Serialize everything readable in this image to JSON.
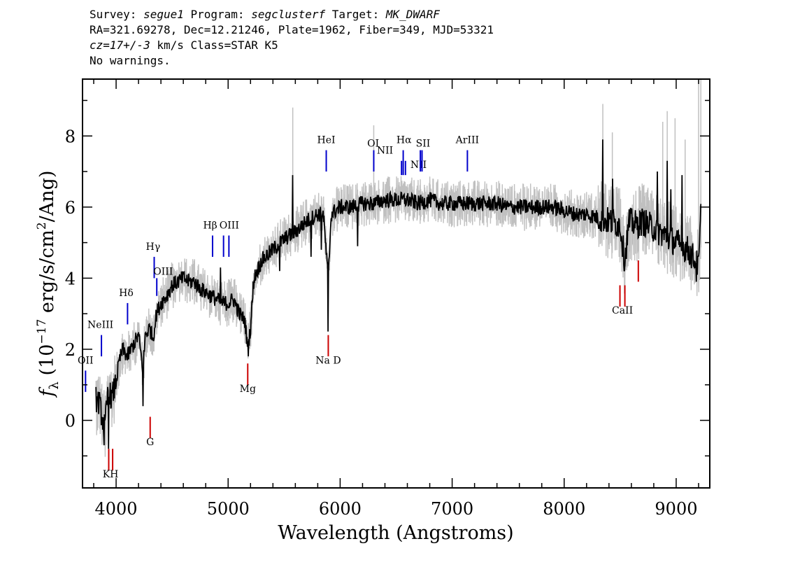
{
  "header": {
    "survey_label": "Survey: ",
    "survey": "segue1",
    "program_label": " Program: ",
    "program": "segclusterf",
    "target_label": " Target: ",
    "target": "MK_DWARF",
    "line2": "RA=321.69278, Dec=12.21246, Plate=1962, Fiber=349, MJD=53321",
    "cz": "cz=17+/-3",
    "line3_rest": " km/s Class=STAR K5",
    "line4": "No warnings."
  },
  "chart_data": {
    "type": "line",
    "xlabel": "Wavelength (Angstroms)",
    "ylabel": "f_λ (10^-17 erg/s/cm^2/Ang)",
    "ylabel_parts": {
      "f": "f",
      "sub": "λ",
      "pre": " (10",
      "exp": "−17",
      "mid": " erg/s/cm",
      "exp2": "2",
      "post": "/Ang)"
    },
    "xlim": [
      3700,
      9300
    ],
    "ylim": [
      -1.9,
      9.6
    ],
    "xticks": [
      4000,
      5000,
      6000,
      7000,
      8000,
      9000
    ],
    "xtick_labels": [
      "4000",
      "5000",
      "6000",
      "7000",
      "8000",
      "9000"
    ],
    "yticks": [
      0,
      2,
      4,
      6,
      8
    ],
    "ytick_labels": [
      "0",
      "2",
      "4",
      "6",
      "8"
    ],
    "colors": {
      "spectrum": "#000000",
      "error": "#c0c0c0",
      "emission": "#0000cc",
      "absorption": "#cc0000"
    },
    "spectrum_knots": [
      [
        3820,
        0.6
      ],
      [
        3850,
        0.5
      ],
      [
        3880,
        0.0
      ],
      [
        3900,
        -0.2
      ],
      [
        3930,
        0.9
      ],
      [
        3960,
        0.6
      ],
      [
        4000,
        1.1
      ],
      [
        4030,
        1.7
      ],
      [
        4060,
        2.0
      ],
      [
        4100,
        1.8
      ],
      [
        4150,
        2.1
      ],
      [
        4200,
        2.4
      ],
      [
        4240,
        1.4
      ],
      [
        4260,
        2.4
      ],
      [
        4300,
        2.6
      ],
      [
        4330,
        2.3
      ],
      [
        4360,
        3.0
      ],
      [
        4400,
        3.3
      ],
      [
        4450,
        3.5
      ],
      [
        4500,
        3.8
      ],
      [
        4550,
        3.9
      ],
      [
        4600,
        4.0
      ],
      [
        4650,
        3.9
      ],
      [
        4700,
        3.9
      ],
      [
        4750,
        3.7
      ],
      [
        4800,
        3.6
      ],
      [
        4850,
        3.5
      ],
      [
        4900,
        3.4
      ],
      [
        4950,
        3.3
      ],
      [
        5000,
        3.3
      ],
      [
        5050,
        3.4
      ],
      [
        5100,
        3.0
      ],
      [
        5150,
        2.8
      ],
      [
        5175,
        2.0
      ],
      [
        5200,
        2.6
      ],
      [
        5230,
        4.0
      ],
      [
        5300,
        4.5
      ],
      [
        5400,
        4.8
      ],
      [
        5500,
        5.1
      ],
      [
        5600,
        5.3
      ],
      [
        5700,
        5.6
      ],
      [
        5800,
        5.8
      ],
      [
        5850,
        5.8
      ],
      [
        5893,
        4.0
      ],
      [
        5920,
        5.8
      ],
      [
        6000,
        6.0
      ],
      [
        6100,
        6.0
      ],
      [
        6200,
        6.1
      ],
      [
        6300,
        6.1
      ],
      [
        6400,
        6.2
      ],
      [
        6500,
        6.2
      ],
      [
        6600,
        6.2
      ],
      [
        6700,
        6.1
      ],
      [
        6800,
        6.2
      ],
      [
        6900,
        6.1
      ],
      [
        7000,
        6.1
      ],
      [
        7100,
        6.1
      ],
      [
        7200,
        6.1
      ],
      [
        7300,
        6.1
      ],
      [
        7400,
        6.1
      ],
      [
        7500,
        6.0
      ],
      [
        7600,
        6.0
      ],
      [
        7700,
        6.0
      ],
      [
        7800,
        6.0
      ],
      [
        7900,
        6.0
      ],
      [
        8000,
        5.9
      ],
      [
        8100,
        5.8
      ],
      [
        8200,
        5.8
      ],
      [
        8300,
        5.7
      ],
      [
        8400,
        5.6
      ],
      [
        8500,
        5.5
      ],
      [
        8540,
        4.5
      ],
      [
        8580,
        5.6
      ],
      [
        8650,
        5.5
      ],
      [
        8700,
        5.6
      ],
      [
        8800,
        5.4
      ],
      [
        8900,
        5.2
      ],
      [
        9000,
        5.0
      ],
      [
        9100,
        4.8
      ],
      [
        9150,
        4.6
      ],
      [
        9200,
        4.3
      ],
      [
        9220,
        5.8
      ]
    ],
    "spectrum_spikes": [
      [
        5577,
        6.9
      ],
      [
        5893,
        2.5
      ],
      [
        5178,
        1.8
      ],
      [
        8345,
        7.9
      ],
      [
        8920,
        7.3
      ],
      [
        8830,
        7.0
      ],
      [
        6155,
        4.9
      ],
      [
        5740,
        4.6
      ],
      [
        4930,
        4.3
      ],
      [
        3890,
        -0.7
      ],
      [
        3930,
        -0.8
      ],
      [
        4240,
        0.4
      ],
      [
        9180,
        3.9
      ],
      [
        8430,
        6.8
      ],
      [
        9050,
        6.9
      ],
      [
        8950,
        6.5
      ],
      [
        5460,
        4.2
      ],
      [
        5830,
        4.8
      ]
    ],
    "noise_amplitude": 0.45,
    "error_amplitude": 0.6,
    "error_spikes": [
      [
        5577,
        8.8
      ],
      [
        6300,
        8.3
      ],
      [
        8345,
        8.9
      ],
      [
        8920,
        8.7
      ],
      [
        8990,
        8.5
      ],
      [
        8880,
        8.4
      ],
      [
        8430,
        8.1
      ],
      [
        9080,
        7.9
      ],
      [
        9200,
        9.6
      ],
      [
        9220,
        9.6
      ]
    ],
    "emission_lines": [
      {
        "label": "OII",
        "x": 3727,
        "y0": 0.8,
        "y1": 1.4,
        "lx": 3727,
        "ly": 1.6
      },
      {
        "label": "NeIII",
        "x": 3869,
        "y0": 1.8,
        "y1": 2.4,
        "lx": 3860,
        "ly": 2.6
      },
      {
        "label": "Hδ",
        "x": 4102,
        "y0": 2.7,
        "y1": 3.3,
        "lx": 4090,
        "ly": 3.5
      },
      {
        "label": "Hγ",
        "x": 4340,
        "y0": 4.0,
        "y1": 4.6,
        "lx": 4330,
        "ly": 4.8
      },
      {
        "label": "OIII",
        "x": 4363,
        "y0": 3.5,
        "y1": 4.0,
        "lx": 4420,
        "ly": 4.1
      },
      {
        "label": "Hβ",
        "x": 4861,
        "y0": 4.6,
        "y1": 5.2,
        "lx": 4840,
        "ly": 5.4
      },
      {
        "label": "OIII",
        "x": 4959,
        "y0": 4.6,
        "y1": 5.2,
        "lx": 5010,
        "ly": 5.4
      },
      {
        "label": "",
        "x": 5007,
        "y0": 4.6,
        "y1": 5.2,
        "lx": 5007,
        "ly": 5.4
      },
      {
        "label": "HeI",
        "x": 5876,
        "y0": 7.0,
        "y1": 7.6,
        "lx": 5876,
        "ly": 7.8
      },
      {
        "label": "OI",
        "x": 6300,
        "y0": 7.0,
        "y1": 7.6,
        "lx": 6295,
        "ly": 7.7
      },
      {
        "label": "NII",
        "x": 6548,
        "y0": 6.9,
        "y1": 7.3,
        "lx": 6400,
        "ly": 7.5
      },
      {
        "label": "Hα",
        "x": 6563,
        "y0": 6.9,
        "y1": 7.6,
        "lx": 6570,
        "ly": 7.8
      },
      {
        "label": "NII",
        "x": 6583,
        "y0": 6.9,
        "y1": 7.3,
        "lx": 6700,
        "ly": 7.1
      },
      {
        "label": "SII",
        "x": 6716,
        "y0": 7.0,
        "y1": 7.6,
        "lx": 6740,
        "ly": 7.7
      },
      {
        "label": "",
        "x": 6731,
        "y0": 7.0,
        "y1": 7.6,
        "lx": 6731,
        "ly": 7.7
      },
      {
        "label": "ArIII",
        "x": 7136,
        "y0": 7.0,
        "y1": 7.6,
        "lx": 7136,
        "ly": 7.8
      }
    ],
    "absorption_lines": [
      {
        "label": "KH",
        "x": 3934,
        "y0": -1.4,
        "y1": -0.8,
        "lx": 3950,
        "ly": -1.6
      },
      {
        "label": "",
        "x": 3969,
        "y0": -1.4,
        "y1": -0.8,
        "lx": 3969,
        "ly": -1.6
      },
      {
        "label": "G",
        "x": 4304,
        "y0": -0.5,
        "y1": 0.1,
        "lx": 4304,
        "ly": -0.7
      },
      {
        "label": "Mg",
        "x": 5175,
        "y0": 1.0,
        "y1": 1.6,
        "lx": 5175,
        "ly": 0.8
      },
      {
        "label": "Na D",
        "x": 5894,
        "y0": 1.8,
        "y1": 2.4,
        "lx": 5894,
        "ly": 1.6
      },
      {
        "label": "CaII",
        "x": 8498,
        "y0": 3.2,
        "y1": 3.8,
        "lx": 8520,
        "ly": 3.0
      },
      {
        "label": "",
        "x": 8542,
        "y0": 3.2,
        "y1": 3.8,
        "lx": 8542,
        "ly": 3.0
      },
      {
        "label": "",
        "x": 8662,
        "y0": 3.9,
        "y1": 4.5,
        "lx": 8662,
        "ly": 3.7
      }
    ]
  }
}
